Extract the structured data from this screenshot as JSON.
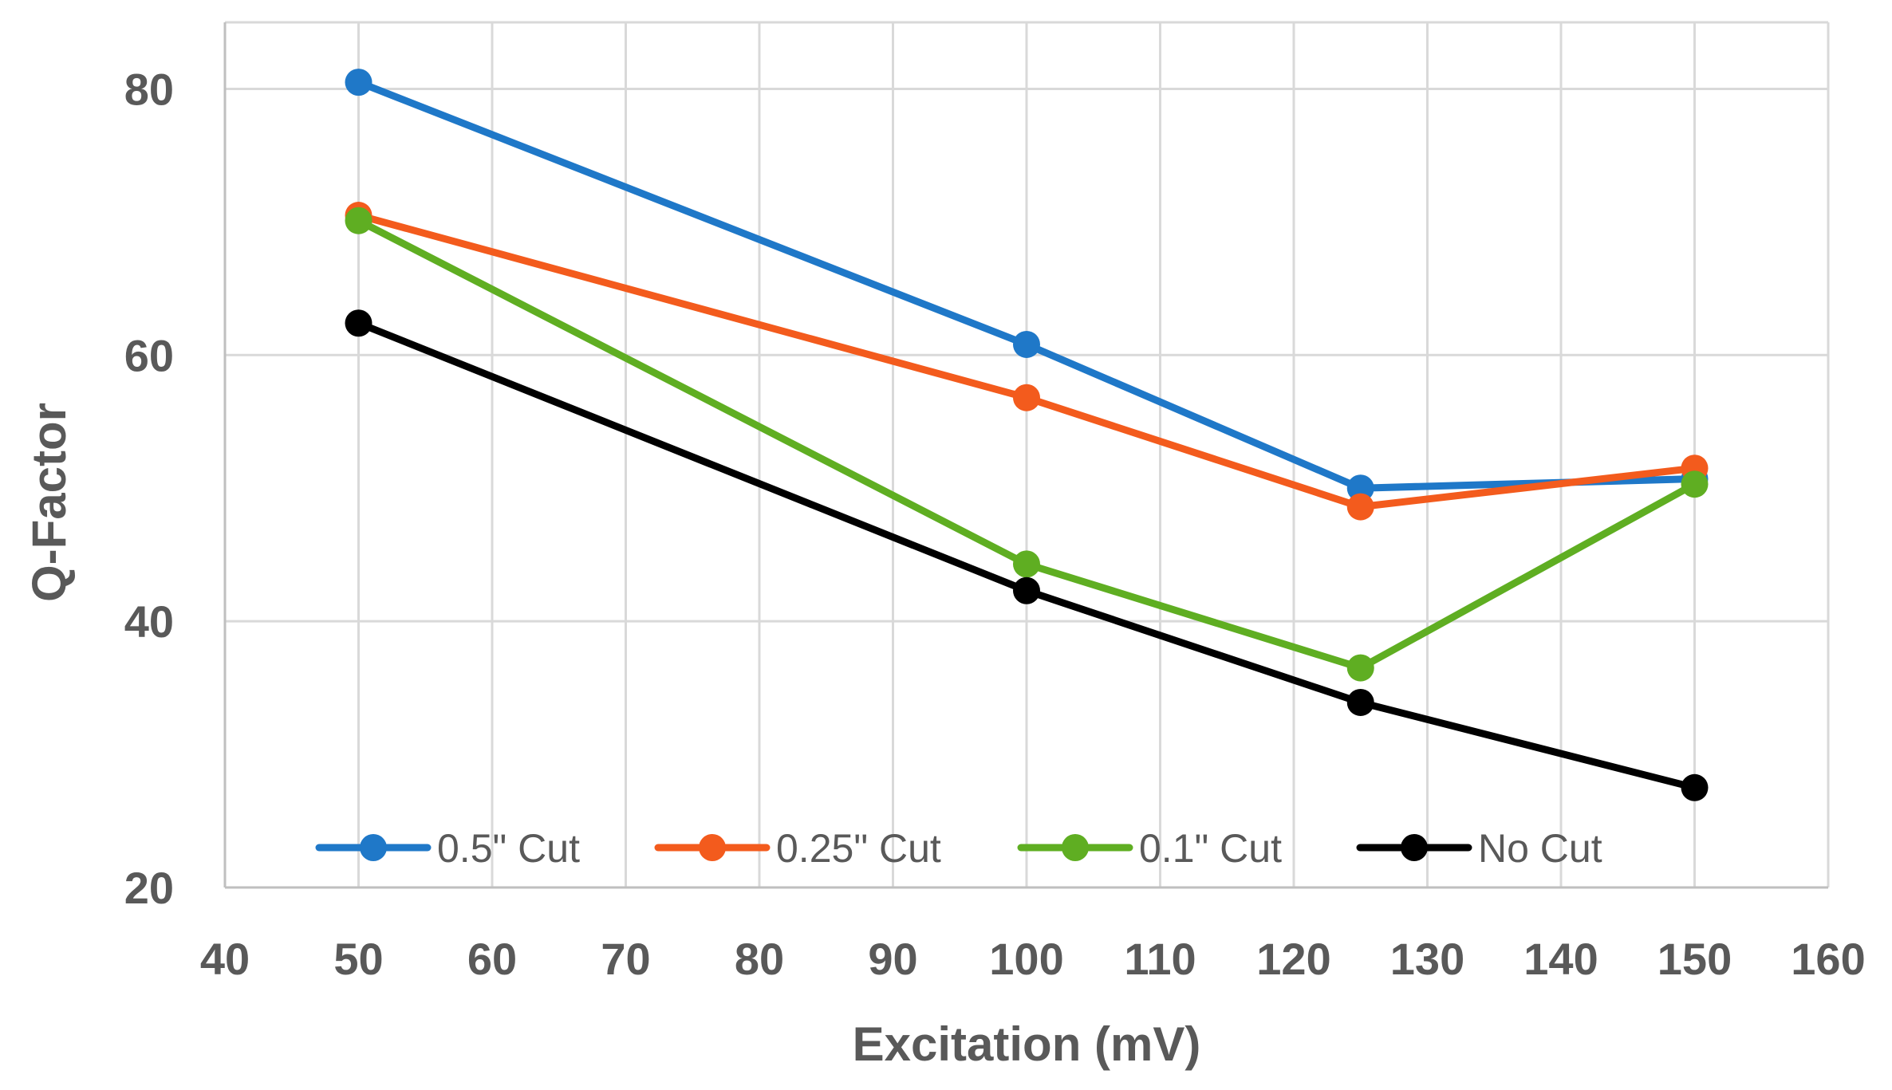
{
  "chart_data": {
    "type": "line",
    "title": "",
    "xlabel": "Excitation (mV)",
    "ylabel": "Q-Factor",
    "xlim": [
      40,
      160
    ],
    "ylim": [
      20,
      85
    ],
    "xticks": [
      40,
      50,
      60,
      70,
      80,
      90,
      100,
      110,
      120,
      130,
      140,
      150,
      160
    ],
    "yticks": [
      20,
      40,
      60,
      80
    ],
    "grid": true,
    "legend_position": "bottom",
    "x": [
      50,
      100,
      125,
      150
    ],
    "series": [
      {
        "name": "0.5\" Cut",
        "color": "#1f78c8",
        "values": [
          80.5,
          60.8,
          50.0,
          50.7
        ]
      },
      {
        "name": "0.25\" Cut",
        "color": "#f35b1d",
        "values": [
          70.5,
          56.8,
          48.6,
          51.5
        ]
      },
      {
        "name": "0.1\" Cut",
        "color": "#5fae22",
        "values": [
          70.1,
          44.3,
          36.5,
          50.3
        ]
      },
      {
        "name": "No Cut",
        "color": "#000000",
        "values": [
          62.4,
          42.3,
          33.9,
          27.5
        ]
      }
    ]
  }
}
